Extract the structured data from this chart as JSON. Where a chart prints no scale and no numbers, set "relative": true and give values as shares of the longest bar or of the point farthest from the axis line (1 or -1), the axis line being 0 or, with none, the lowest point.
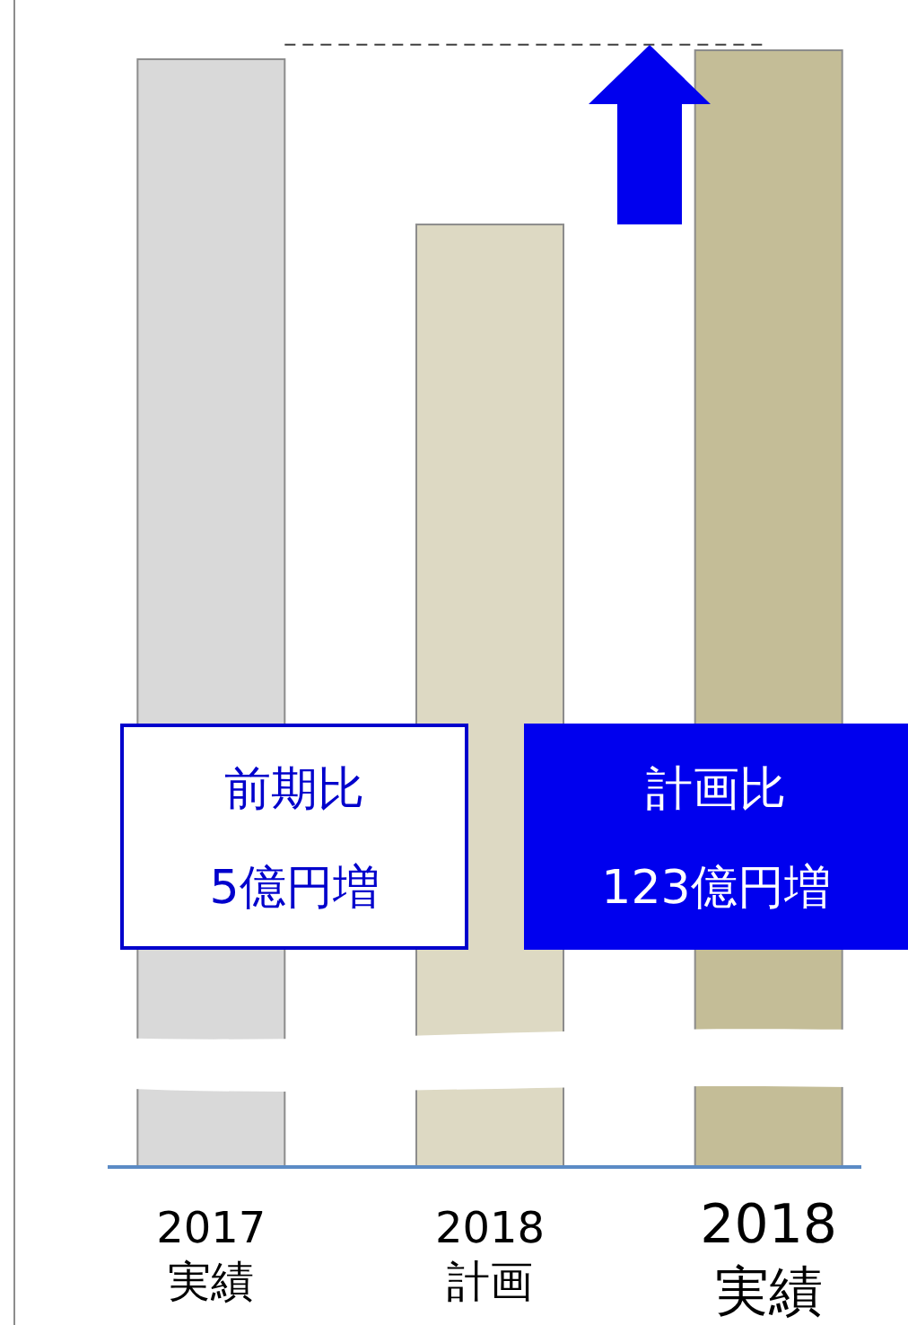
{
  "chart_data": {
    "type": "bar",
    "relative": true,
    "categories": [
      "2017\n実績",
      "2018\n計画",
      "2018\n実績"
    ],
    "values": [
      0.992,
      0.844,
      1.0
    ],
    "colors": [
      "#d9d9d9",
      "#ddd9c3",
      "#c4bd97"
    ],
    "ref_lines": [
      {
        "axis": "y",
        "value": 1.005,
        "color": "#404040",
        "line_style": "dashed"
      }
    ],
    "annotations": [
      "前期比\n5億円増",
      "計画比\n123億円増"
    ]
  }
}
